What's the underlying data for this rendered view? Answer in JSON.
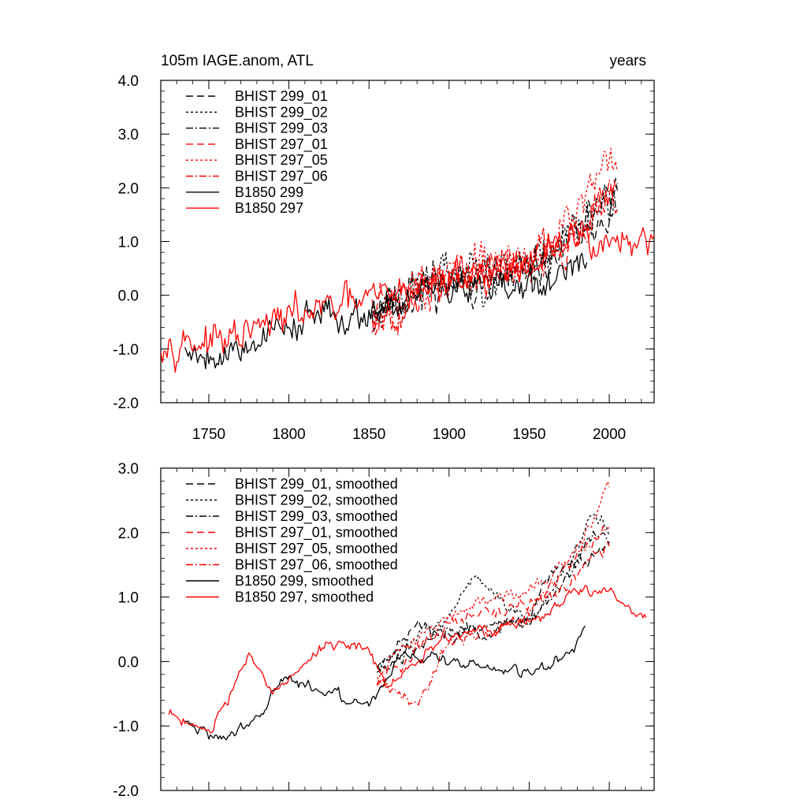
{
  "figure": {
    "title_left": "105m IAGE.anom, ATL",
    "title_right": "years"
  },
  "colors": {
    "black": "#000000",
    "red": "#ff0000"
  },
  "chart_data": [
    {
      "type": "line",
      "title": "105m IAGE.anom, ATL",
      "units": "years",
      "xlim": [
        1720,
        2028
      ],
      "ylim": [
        -2.0,
        4.0
      ],
      "xticks": [
        1750,
        1800,
        1850,
        1900,
        1950,
        2000
      ],
      "yticks": [
        -2.0,
        -1.0,
        0.0,
        1.0,
        2.0,
        3.0,
        4.0
      ],
      "ytick_labels": [
        "-2.0",
        "-1.0",
        "0.0",
        "1.0",
        "2.0",
        "3.0",
        "4.0"
      ],
      "xtick_labels": [
        "1750",
        "1800",
        "1850",
        "1900",
        "1950",
        "2000"
      ],
      "legend_position": "top-left",
      "series": [
        {
          "name": "BHIST 299_01",
          "color": "#000000",
          "dash": "longdash",
          "start": 1852,
          "end": 2005,
          "trend": [
            [
              1852,
              -0.2
            ],
            [
              1900,
              0.2
            ],
            [
              1950,
              0.4
            ],
            [
              1975,
              0.9
            ],
            [
              2005,
              1.9
            ]
          ],
          "noise": 0.55,
          "seed": 11
        },
        {
          "name": "BHIST 299_02",
          "color": "#000000",
          "dash": "dot",
          "start": 1852,
          "end": 2005,
          "trend": [
            [
              1852,
              -0.3
            ],
            [
              1900,
              0.4
            ],
            [
              1950,
              0.5
            ],
            [
              1975,
              1.2
            ],
            [
              2005,
              2.0
            ]
          ],
          "noise": 0.6,
          "seed": 23
        },
        {
          "name": "BHIST 299_03",
          "color": "#000000",
          "dash": "dashdot",
          "start": 1852,
          "end": 2005,
          "trend": [
            [
              1852,
              -0.2
            ],
            [
              1900,
              0.3
            ],
            [
              1950,
              0.5
            ],
            [
              1975,
              1.0
            ],
            [
              2005,
              1.9
            ]
          ],
          "noise": 0.55,
          "seed": 37
        },
        {
          "name": "BHIST 297_01",
          "color": "#ff0000",
          "dash": "longdash",
          "start": 1852,
          "end": 2005,
          "trend": [
            [
              1852,
              -0.3
            ],
            [
              1900,
              0.3
            ],
            [
              1950,
              0.6
            ],
            [
              1975,
              1.0
            ],
            [
              2005,
              2.1
            ]
          ],
          "noise": 0.55,
          "seed": 41
        },
        {
          "name": "BHIST 297_05",
          "color": "#ff0000",
          "dash": "dot",
          "start": 1852,
          "end": 2005,
          "trend": [
            [
              1852,
              -0.3
            ],
            [
              1900,
              0.4
            ],
            [
              1950,
              0.6
            ],
            [
              1975,
              1.3
            ],
            [
              2005,
              2.6
            ]
          ],
          "noise": 0.6,
          "seed": 53
        },
        {
          "name": "BHIST 297_06",
          "color": "#ff0000",
          "dash": "dashdot",
          "start": 1852,
          "end": 2005,
          "trend": [
            [
              1852,
              -0.4
            ],
            [
              1900,
              0.3
            ],
            [
              1950,
              0.7
            ],
            [
              1975,
              1.2
            ],
            [
              2005,
              2.0
            ]
          ],
          "noise": 0.55,
          "seed": 67
        },
        {
          "name": "B1850 299",
          "color": "#000000",
          "dash": "solid",
          "start": 1735,
          "end": 1986,
          "trend": [
            [
              1735,
              -1.0
            ],
            [
              1760,
              -1.1
            ],
            [
              1800,
              -0.5
            ],
            [
              1850,
              -0.3
            ],
            [
              1900,
              0.2
            ],
            [
              1950,
              0.1
            ],
            [
              1986,
              0.5
            ]
          ],
          "noise": 0.45,
          "seed": 79
        },
        {
          "name": "B1850 297",
          "color": "#ff0000",
          "dash": "solid",
          "start": 1720,
          "end": 2028,
          "trend": [
            [
              1720,
              -0.8
            ],
            [
              1760,
              -0.9
            ],
            [
              1800,
              -0.4
            ],
            [
              1850,
              -0.1
            ],
            [
              1900,
              0.3
            ],
            [
              1950,
              0.6
            ],
            [
              1985,
              1.1
            ],
            [
              2028,
              0.8
            ]
          ],
          "noise": 0.45,
          "seed": 97
        }
      ]
    },
    {
      "type": "line",
      "title": "",
      "xlim": [
        1720,
        2028
      ],
      "ylim": [
        -2.0,
        3.0
      ],
      "xticks": [
        1750,
        1800,
        1850,
        1900,
        1950,
        2000
      ],
      "yticks": [
        -2.0,
        -1.0,
        0.0,
        1.0,
        2.0,
        3.0
      ],
      "ytick_labels": [
        "-2.0",
        "-1.0",
        "0.0",
        "1.0",
        "2.0",
        "3.0"
      ],
      "legend_position": "top-left",
      "series": [
        {
          "name": "BHIST 299_01, smoothed",
          "color": "#000000",
          "dash": "longdash",
          "start": 1855,
          "end": 2000,
          "trend": [
            [
              1855,
              -0.1
            ],
            [
              1880,
              0.6
            ],
            [
              1900,
              0.4
            ],
            [
              1925,
              0.5
            ],
            [
              1950,
              0.7
            ],
            [
              1965,
              1.4
            ],
            [
              1980,
              1.5
            ],
            [
              2000,
              1.8
            ]
          ],
          "noise": 0.15,
          "seed": 111
        },
        {
          "name": "BHIST 299_02, smoothed",
          "color": "#000000",
          "dash": "dot",
          "start": 1855,
          "end": 2000,
          "trend": [
            [
              1855,
              -0.1
            ],
            [
              1880,
              0.4
            ],
            [
              1900,
              0.7
            ],
            [
              1915,
              1.3
            ],
            [
              1950,
              0.6
            ],
            [
              1975,
              1.5
            ],
            [
              1990,
              2.3
            ],
            [
              2000,
              2.0
            ]
          ],
          "noise": 0.15,
          "seed": 123
        },
        {
          "name": "BHIST 299_03, smoothed",
          "color": "#000000",
          "dash": "dashdot",
          "start": 1855,
          "end": 2000,
          "trend": [
            [
              1855,
              -0.1
            ],
            [
              1880,
              0.2
            ],
            [
              1900,
              0.5
            ],
            [
              1950,
              0.6
            ],
            [
              1975,
              1.3
            ],
            [
              1990,
              2.0
            ],
            [
              2000,
              1.9
            ]
          ],
          "noise": 0.15,
          "seed": 137
        },
        {
          "name": "BHIST 297_01, smoothed",
          "color": "#ff0000",
          "dash": "longdash",
          "start": 1855,
          "end": 2000,
          "trend": [
            [
              1855,
              -0.3
            ],
            [
              1880,
              0.2
            ],
            [
              1900,
              0.6
            ],
            [
              1950,
              0.9
            ],
            [
              1975,
              1.2
            ],
            [
              1990,
              1.7
            ],
            [
              2000,
              1.8
            ]
          ],
          "noise": 0.15,
          "seed": 141
        },
        {
          "name": "BHIST 297_05, smoothed",
          "color": "#ff0000",
          "dash": "dot",
          "start": 1855,
          "end": 2000,
          "trend": [
            [
              1855,
              -0.2
            ],
            [
              1880,
              0.4
            ],
            [
              1900,
              0.7
            ],
            [
              1950,
              1.1
            ],
            [
              1975,
              1.6
            ],
            [
              1990,
              2.2
            ],
            [
              2000,
              2.8
            ]
          ],
          "noise": 0.15,
          "seed": 153
        },
        {
          "name": "BHIST 297_06, smoothed",
          "color": "#ff0000",
          "dash": "dashdot",
          "start": 1855,
          "end": 2000,
          "trend": [
            [
              1855,
              -0.3
            ],
            [
              1880,
              -0.6
            ],
            [
              1900,
              0.3
            ],
            [
              1950,
              0.7
            ],
            [
              1975,
              1.5
            ],
            [
              1990,
              1.9
            ],
            [
              2000,
              2.1
            ]
          ],
          "noise": 0.15,
          "seed": 167
        },
        {
          "name": "B1850 299, smoothed",
          "color": "#000000",
          "dash": "solid",
          "start": 1735,
          "end": 1985,
          "trend": [
            [
              1735,
              -0.9
            ],
            [
              1755,
              -1.2
            ],
            [
              1780,
              -0.9
            ],
            [
              1795,
              -0.3
            ],
            [
              1830,
              -0.5
            ],
            [
              1850,
              -0.7
            ],
            [
              1870,
              0.1
            ],
            [
              1900,
              0.0
            ],
            [
              1950,
              -0.2
            ],
            [
              1975,
              0.1
            ],
            [
              1985,
              0.5
            ]
          ],
          "noise": 0.12,
          "seed": 179
        },
        {
          "name": "B1850 297, smoothed",
          "color": "#ff0000",
          "dash": "solid",
          "start": 1725,
          "end": 2023,
          "trend": [
            [
              1725,
              -0.8
            ],
            [
              1750,
              -1.1
            ],
            [
              1775,
              0.1
            ],
            [
              1790,
              -0.5
            ],
            [
              1825,
              0.3
            ],
            [
              1850,
              0.2
            ],
            [
              1860,
              -0.4
            ],
            [
              1900,
              0.4
            ],
            [
              1950,
              0.6
            ],
            [
              1982,
              1.1
            ],
            [
              2000,
              1.1
            ],
            [
              2023,
              0.7
            ]
          ],
          "noise": 0.12,
          "seed": 197
        }
      ]
    }
  ]
}
